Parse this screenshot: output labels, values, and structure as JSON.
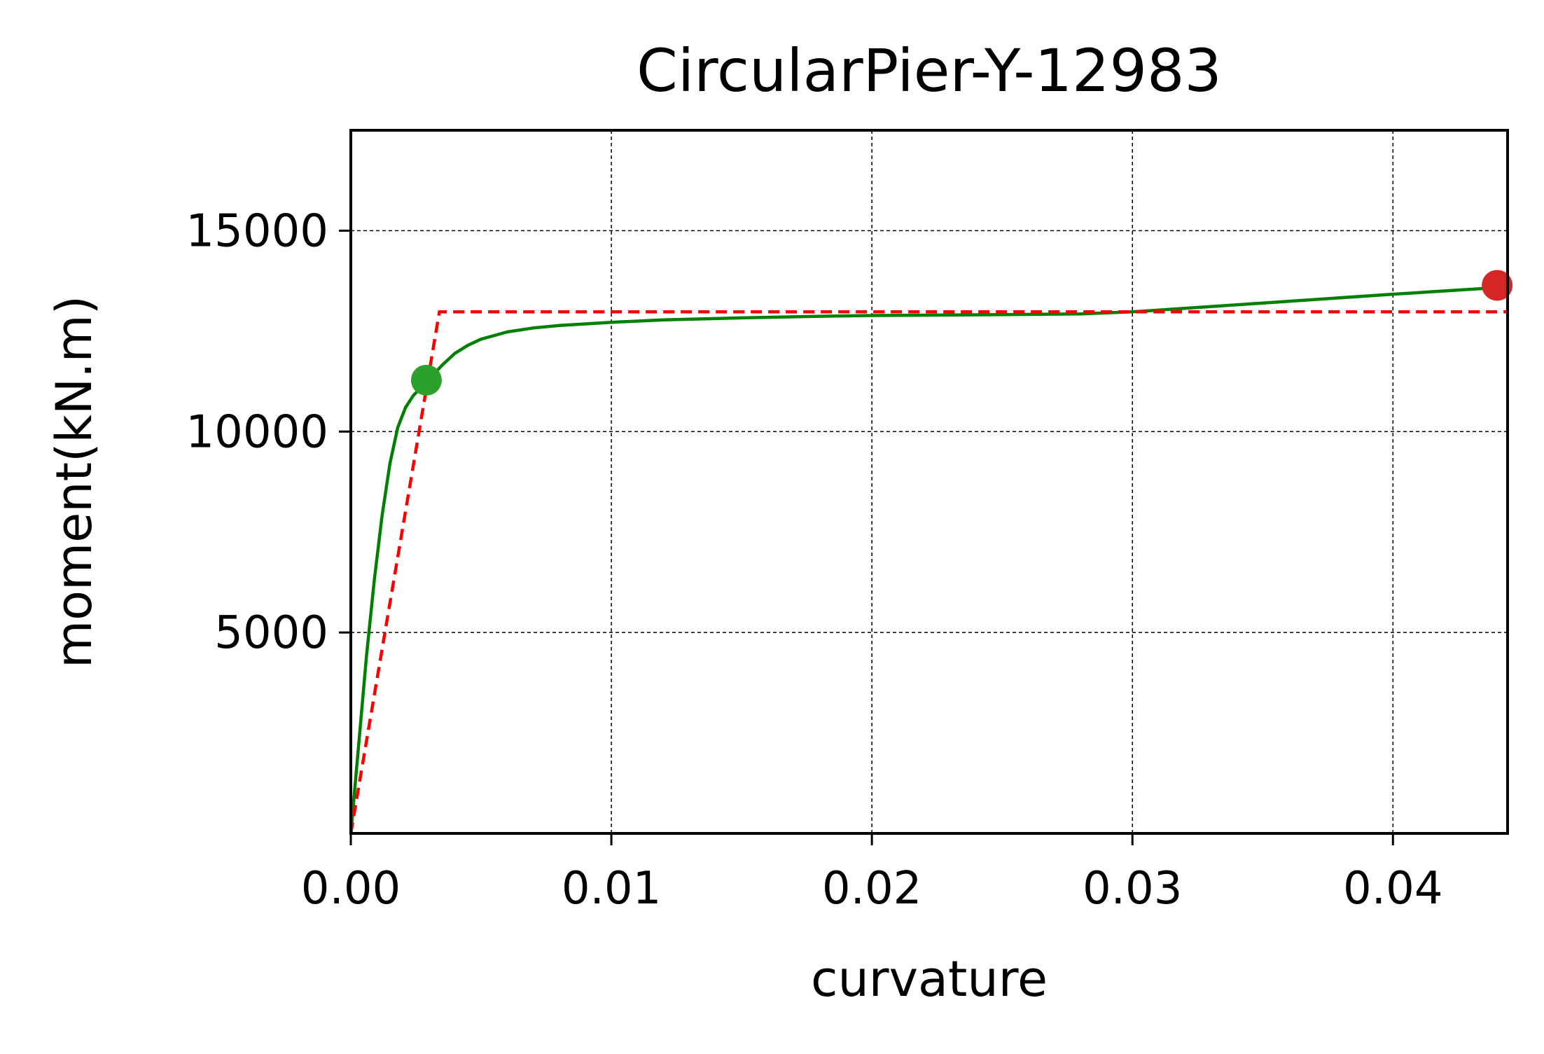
{
  "chart_data": {
    "type": "line",
    "title": "CircularPier-Y-12983",
    "xlabel": "curvature",
    "ylabel": "moment(kN.m)",
    "xlim": [
      0.0,
      0.0444
    ],
    "ylim": [
      0,
      17500
    ],
    "x_ticks": [
      {
        "value": 0.0,
        "label": "0.00"
      },
      {
        "value": 0.01,
        "label": "0.01"
      },
      {
        "value": 0.02,
        "label": "0.02"
      },
      {
        "value": 0.03,
        "label": "0.03"
      },
      {
        "value": 0.04,
        "label": "0.04"
      }
    ],
    "y_ticks": [
      {
        "value": 5000,
        "label": "5000"
      },
      {
        "value": 10000,
        "label": "10000"
      },
      {
        "value": 15000,
        "label": "15000"
      }
    ],
    "grid": true,
    "series": [
      {
        "color": "#008000",
        "style": "solid",
        "x": [
          0.0,
          0.0003,
          0.0006,
          0.0009,
          0.0012,
          0.0015,
          0.0018,
          0.0021,
          0.0024,
          0.0027,
          0.003,
          0.0035,
          0.004,
          0.0045,
          0.005,
          0.006,
          0.007,
          0.008,
          0.01,
          0.012,
          0.015,
          0.018,
          0.02,
          0.025,
          0.028,
          0.03,
          0.035,
          0.04,
          0.0444
        ],
        "y": [
          0,
          2200,
          4400,
          6300,
          7900,
          9200,
          10100,
          10600,
          10900,
          11100,
          11300,
          11650,
          11950,
          12150,
          12300,
          12480,
          12580,
          12640,
          12720,
          12780,
          12830,
          12870,
          12890,
          12910,
          12930,
          12980,
          13200,
          13420,
          13600
        ]
      },
      {
        "color": "#ff0000",
        "style": "dashed",
        "x": [
          0.0,
          0.0034,
          0.0444
        ],
        "y": [
          0,
          12980,
          12980
        ]
      }
    ],
    "markers": [
      {
        "x": 0.0029,
        "y": 11280,
        "color": "#2ca02c"
      },
      {
        "x": 0.044,
        "y": 13640,
        "color": "#d62728"
      }
    ]
  }
}
